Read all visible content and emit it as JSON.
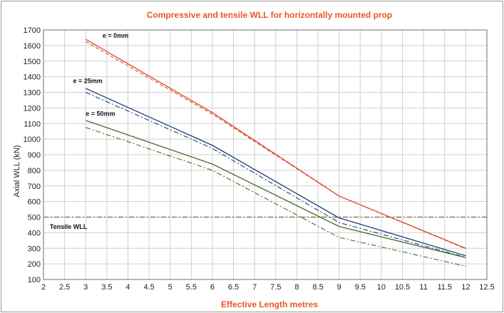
{
  "chart_data": {
    "type": "line",
    "title": "Compressive and tensile WLL  for  horizontally mounted prop",
    "xlabel": "Effective Length metres",
    "ylabel": "Axial WLL (kN)",
    "xlim": [
      2,
      12.5
    ],
    "ylim": [
      100,
      1700
    ],
    "x_ticks": [
      "2",
      "2.5",
      "3",
      "3.5",
      "4",
      "4.5",
      "5",
      "5.5",
      "6",
      "6.5",
      "7",
      "7.5",
      "8",
      "8.5",
      "9",
      "9.5",
      "10",
      "10.5",
      "11",
      "11.5",
      "12",
      "12.5"
    ],
    "y_ticks": [
      "100",
      "200",
      "300",
      "400",
      "500",
      "600",
      "700",
      "800",
      "900",
      "1000",
      "1100",
      "1200",
      "1300",
      "1400",
      "1500",
      "1600",
      "1700"
    ],
    "grid": true,
    "colors": {
      "title": "#e8581e",
      "axis_title": "#e8581e",
      "e0": "#d94a2c",
      "e25": "#1f3f7a",
      "e50": "#4a6a2a",
      "tensile": "#7a6636"
    },
    "series": [
      {
        "style": "solid",
        "color_key": "e0",
        "x": [
          3,
          6,
          9,
          12
        ],
        "y": [
          1640,
          1170,
          635,
          300
        ]
      },
      {
        "style": "dash",
        "color_key": "e0",
        "x": [
          3,
          6,
          9,
          12
        ],
        "y": [
          1625,
          1160,
          635,
          297
        ]
      },
      {
        "style": "solid",
        "color_key": "e25",
        "x": [
          3,
          6,
          9,
          12
        ],
        "y": [
          1325,
          960,
          495,
          252
        ]
      },
      {
        "style": "dashdot",
        "color_key": "e25",
        "x": [
          3,
          6,
          9,
          12
        ],
        "y": [
          1300,
          940,
          465,
          242
        ]
      },
      {
        "style": "solid",
        "color_key": "e50",
        "x": [
          3,
          6,
          9,
          12
        ],
        "y": [
          1120,
          840,
          440,
          240
        ]
      },
      {
        "style": "dashdot",
        "color_key": "e50",
        "x": [
          3,
          6,
          9,
          12
        ],
        "y": [
          1075,
          800,
          370,
          185
        ]
      }
    ],
    "reference_line": {
      "y": 500,
      "label": "Tensile WLL",
      "style": "dashdot",
      "color_key": "tensile"
    },
    "annotations": [
      {
        "text": "e = 0mm",
        "x": 3.4,
        "y": 1650
      },
      {
        "text": "e = 25mm",
        "x": 2.7,
        "y": 1360
      },
      {
        "text": "e = 50mm",
        "x": 3.0,
        "y": 1150
      },
      {
        "text": "Tensile WLL",
        "x": 2.15,
        "y": 425
      }
    ]
  }
}
